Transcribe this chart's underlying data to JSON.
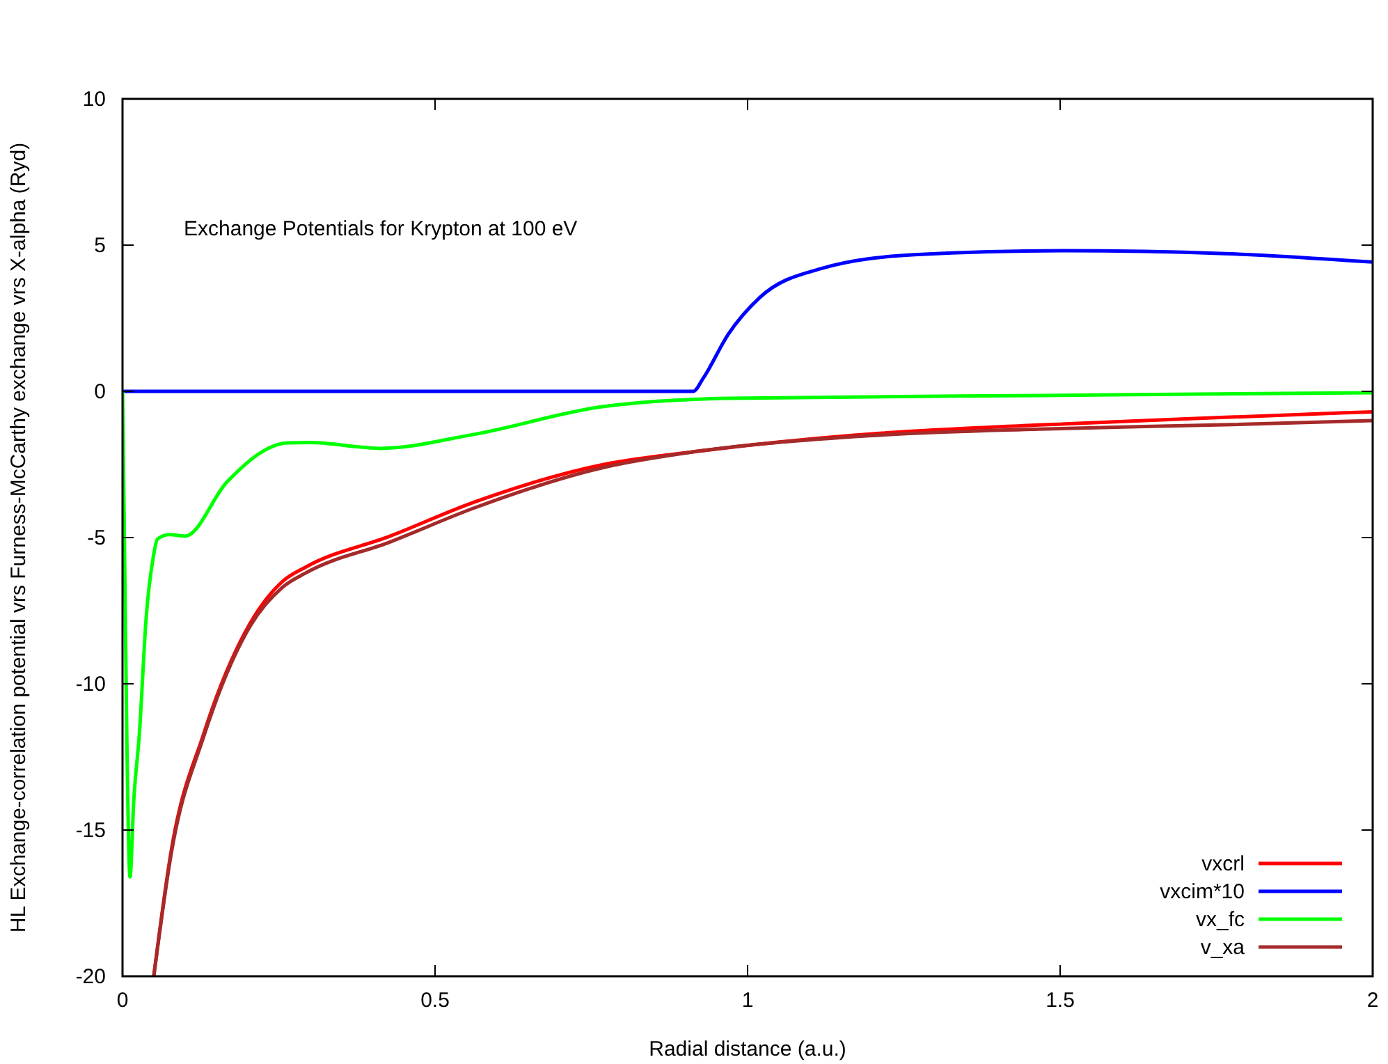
{
  "chart_data": {
    "type": "line",
    "title": "Exchange Potentials for Krypton at 100 eV",
    "xlabel": "Radial distance (a.u.)",
    "ylabel": "HL Exchange-correlation potential vrs Furness-McCarthy exchange vrs X-alpha (Ryd)",
    "xlim": [
      0,
      2
    ],
    "ylim": [
      -20,
      10
    ],
    "xticks": [
      0,
      0.5,
      1,
      1.5,
      2
    ],
    "yticks": [
      -20,
      -15,
      -10,
      -5,
      0,
      5,
      10
    ],
    "grid": false,
    "legend": "bottom right",
    "line_style": "solid",
    "series": [
      {
        "name": "vxcrl",
        "color": "#ff0000",
        "x": [
          0.05,
          0.078,
          0.13,
          0.205,
          0.256,
          0.294,
          0.428,
          0.561,
          0.77,
          0.92,
          1.17,
          1.466,
          1.75,
          2
        ],
        "values": [
          -20,
          -15.7,
          -11.7,
          -7.9,
          -6.5,
          -6.0,
          -4.95,
          -3.8,
          -2.5,
          -2.05,
          -1.5,
          -1.15,
          -0.9,
          -0.7
        ]
      },
      {
        "name": "vxcim*10",
        "color": "#0000ff",
        "x": [
          0,
          0.913,
          0.929,
          0.969,
          1.019,
          1.118,
          1.267,
          1.506,
          1.764,
          2
        ],
        "values": [
          0,
          0,
          0.45,
          1.95,
          3.2,
          4.2,
          4.67,
          4.81,
          4.71,
          4.42
        ]
      },
      {
        "name": "vx_fc",
        "color": "#00ff00",
        "x": [
          0,
          0.003,
          0.007,
          0.012,
          0.018,
          0.027,
          0.038,
          0.049,
          0.056,
          0.075,
          0.1,
          0.167,
          0.265,
          0.3,
          0.413,
          0.56,
          0.77,
          0.97,
          1.47,
          2
        ],
        "values": [
          0,
          -5,
          -12,
          -16.6,
          -14,
          -11.7,
          -7.7,
          -5.7,
          -5.05,
          -4.9,
          -4.95,
          -3.1,
          -1.76,
          -1.75,
          -1.95,
          -1.48,
          -0.52,
          -0.24,
          -0.14,
          -0.05
        ]
      },
      {
        "name": "v_xa",
        "color": "#a52a2a",
        "x": [
          0.05,
          0.078,
          0.13,
          0.205,
          0.256,
          0.294,
          0.428,
          0.561,
          0.77,
          0.92,
          1.17,
          1.466,
          1.75,
          2
        ],
        "values": [
          -20,
          -15.8,
          -11.8,
          -8.0,
          -6.7,
          -6.2,
          -5.15,
          -4.0,
          -2.6,
          -2.05,
          -1.55,
          -1.29,
          -1.15,
          -1.0
        ]
      }
    ]
  }
}
